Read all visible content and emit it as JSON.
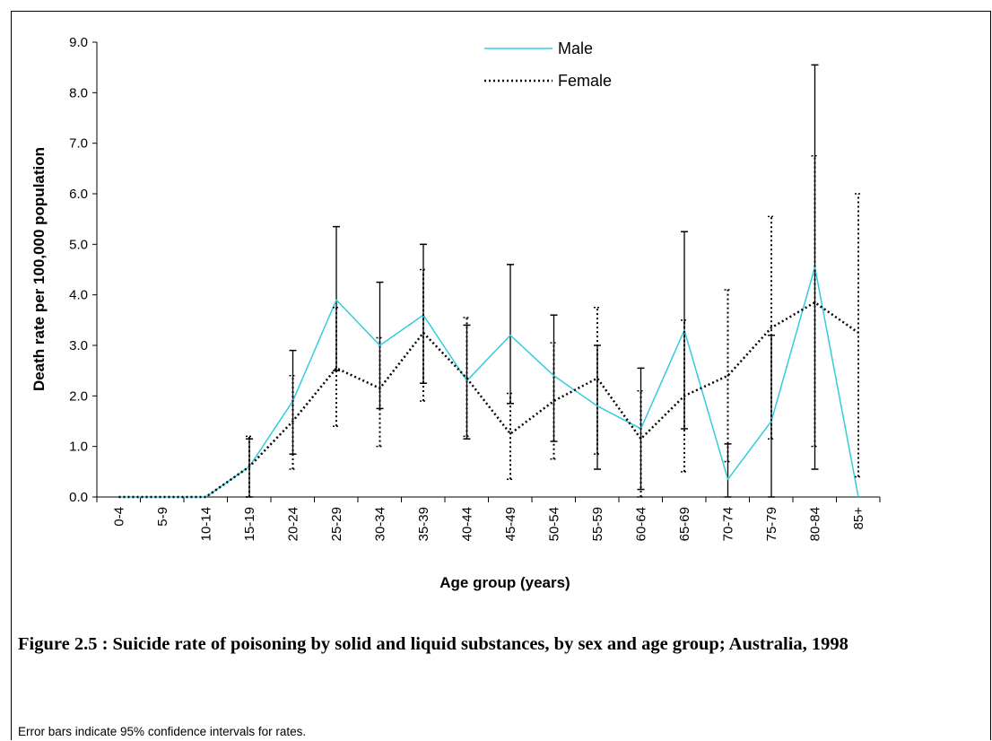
{
  "figure": {
    "caption": "Figure 2.5 : Suicide rate of poisoning by solid and liquid substances, by sex and age group; Australia, 1998",
    "note": "Error bars indicate 95% confidence intervals for rates."
  },
  "chart_data": {
    "type": "line",
    "xlabel": "Age group (years)",
    "ylabel": "Death rate per 100,000 population",
    "ylim": [
      0,
      9
    ],
    "yticks": [
      "0.0",
      "1.0",
      "2.0",
      "3.0",
      "4.0",
      "5.0",
      "6.0",
      "7.0",
      "8.0",
      "9.0"
    ],
    "grid": false,
    "legend_position": "top-center",
    "categories": [
      "0-4",
      "5-9",
      "10-14",
      "15-19",
      "20-24",
      "25-29",
      "30-34",
      "35-39",
      "40-44",
      "45-49",
      "50-54",
      "55-59",
      "60-64",
      "65-69",
      "70-74",
      "75-79",
      "80-84",
      "85+"
    ],
    "series": [
      {
        "name": "Male",
        "color": "#33ccdd",
        "style": "solid",
        "values": [
          0.0,
          0.0,
          0.0,
          0.6,
          1.9,
          3.9,
          3.0,
          3.6,
          2.3,
          3.2,
          2.4,
          1.8,
          1.35,
          3.3,
          0.35,
          1.5,
          4.55,
          0.0
        ],
        "ci_low": [
          null,
          null,
          null,
          0.0,
          0.85,
          2.5,
          1.75,
          2.25,
          1.15,
          1.85,
          1.1,
          0.55,
          0.15,
          1.35,
          0.0,
          0.0,
          0.55,
          null
        ],
        "ci_high": [
          null,
          null,
          null,
          1.15,
          2.9,
          5.35,
          4.25,
          5.0,
          3.4,
          4.6,
          3.6,
          3.0,
          2.55,
          5.25,
          1.05,
          3.2,
          8.55,
          null
        ]
      },
      {
        "name": "Female",
        "color": "#000000",
        "style": "dotted",
        "values": [
          0.0,
          0.0,
          0.0,
          0.6,
          1.5,
          2.55,
          2.15,
          3.25,
          2.35,
          1.25,
          1.9,
          2.35,
          1.15,
          2.0,
          2.4,
          3.35,
          3.85,
          3.25
        ],
        "ci_low": [
          null,
          null,
          null,
          0.0,
          0.55,
          1.4,
          1.0,
          1.9,
          1.2,
          0.35,
          0.75,
          0.85,
          0.0,
          0.5,
          0.7,
          1.15,
          1.0,
          0.4
        ],
        "ci_high": [
          null,
          null,
          null,
          1.2,
          2.4,
          3.75,
          3.15,
          4.5,
          3.55,
          2.05,
          3.05,
          3.75,
          2.1,
          3.5,
          4.1,
          5.55,
          6.75,
          6.0
        ]
      }
    ]
  }
}
